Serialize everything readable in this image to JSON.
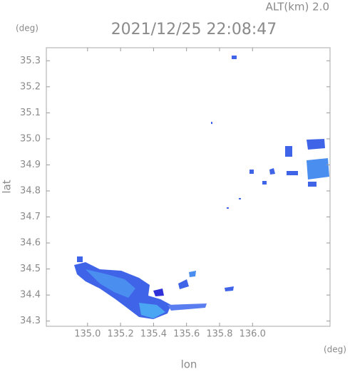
{
  "chart_data": {
    "type": "radar-map",
    "header": "ALT(km) 2.0",
    "title": "2021/12/25 22:08:47",
    "xlabel": "lon",
    "ylabel": "lat",
    "xunit": "(deg)",
    "yunit": "(deg)",
    "xlim": [
      134.75,
      136.47
    ],
    "ylim": [
      34.28,
      35.35
    ],
    "xticks": [
      {
        "value": 135,
        "label": "135.0"
      },
      135.2,
      135.4,
      135.6,
      135.8,
      {
        "value": 136,
        "label": "136.0"
      }
    ],
    "yticks": [
      34.3,
      34.4,
      34.5,
      34.6,
      34.7,
      34.8,
      34.9,
      {
        "value": 35,
        "label": "35.0"
      },
      35.1,
      35.2,
      35.3
    ]
  }
}
